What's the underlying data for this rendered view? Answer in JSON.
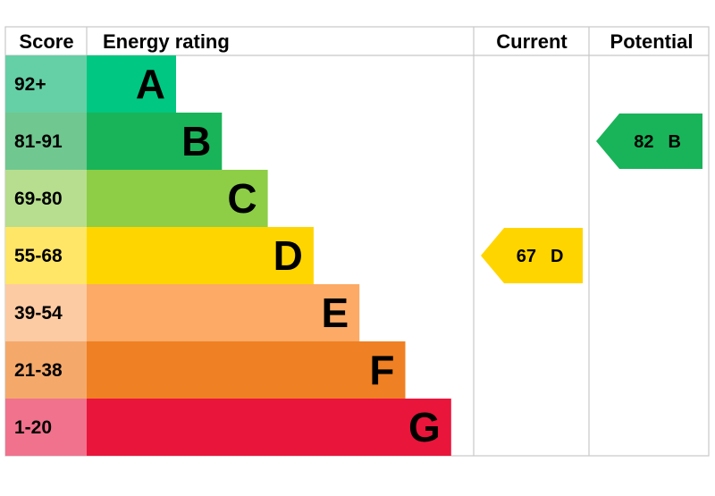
{
  "headers": {
    "score": "Score",
    "energy_rating": "Energy rating",
    "current": "Current",
    "potential": "Potential"
  },
  "chart_data": {
    "type": "bar",
    "title": "",
    "categories": [
      "A",
      "B",
      "C",
      "D",
      "E",
      "F",
      "G"
    ],
    "score_ranges": [
      "92+",
      "81-91",
      "69-80",
      "55-68",
      "39-54",
      "21-38",
      "1-20"
    ],
    "bar_colors": [
      "#00c781",
      "#19b459",
      "#8dce46",
      "#ffd500",
      "#fcaa65",
      "#ef8023",
      "#e9153b"
    ],
    "score_cell_colors": [
      "#65d0a6",
      "#70c78f",
      "#b7de8f",
      "#ffe666",
      "#fdcba3",
      "#f4a96b",
      "#f0728d"
    ],
    "current": {
      "score": "67",
      "band": "D",
      "color": "#ffd500"
    },
    "potential": {
      "score": "82",
      "band": "B",
      "color": "#19b459"
    }
  }
}
